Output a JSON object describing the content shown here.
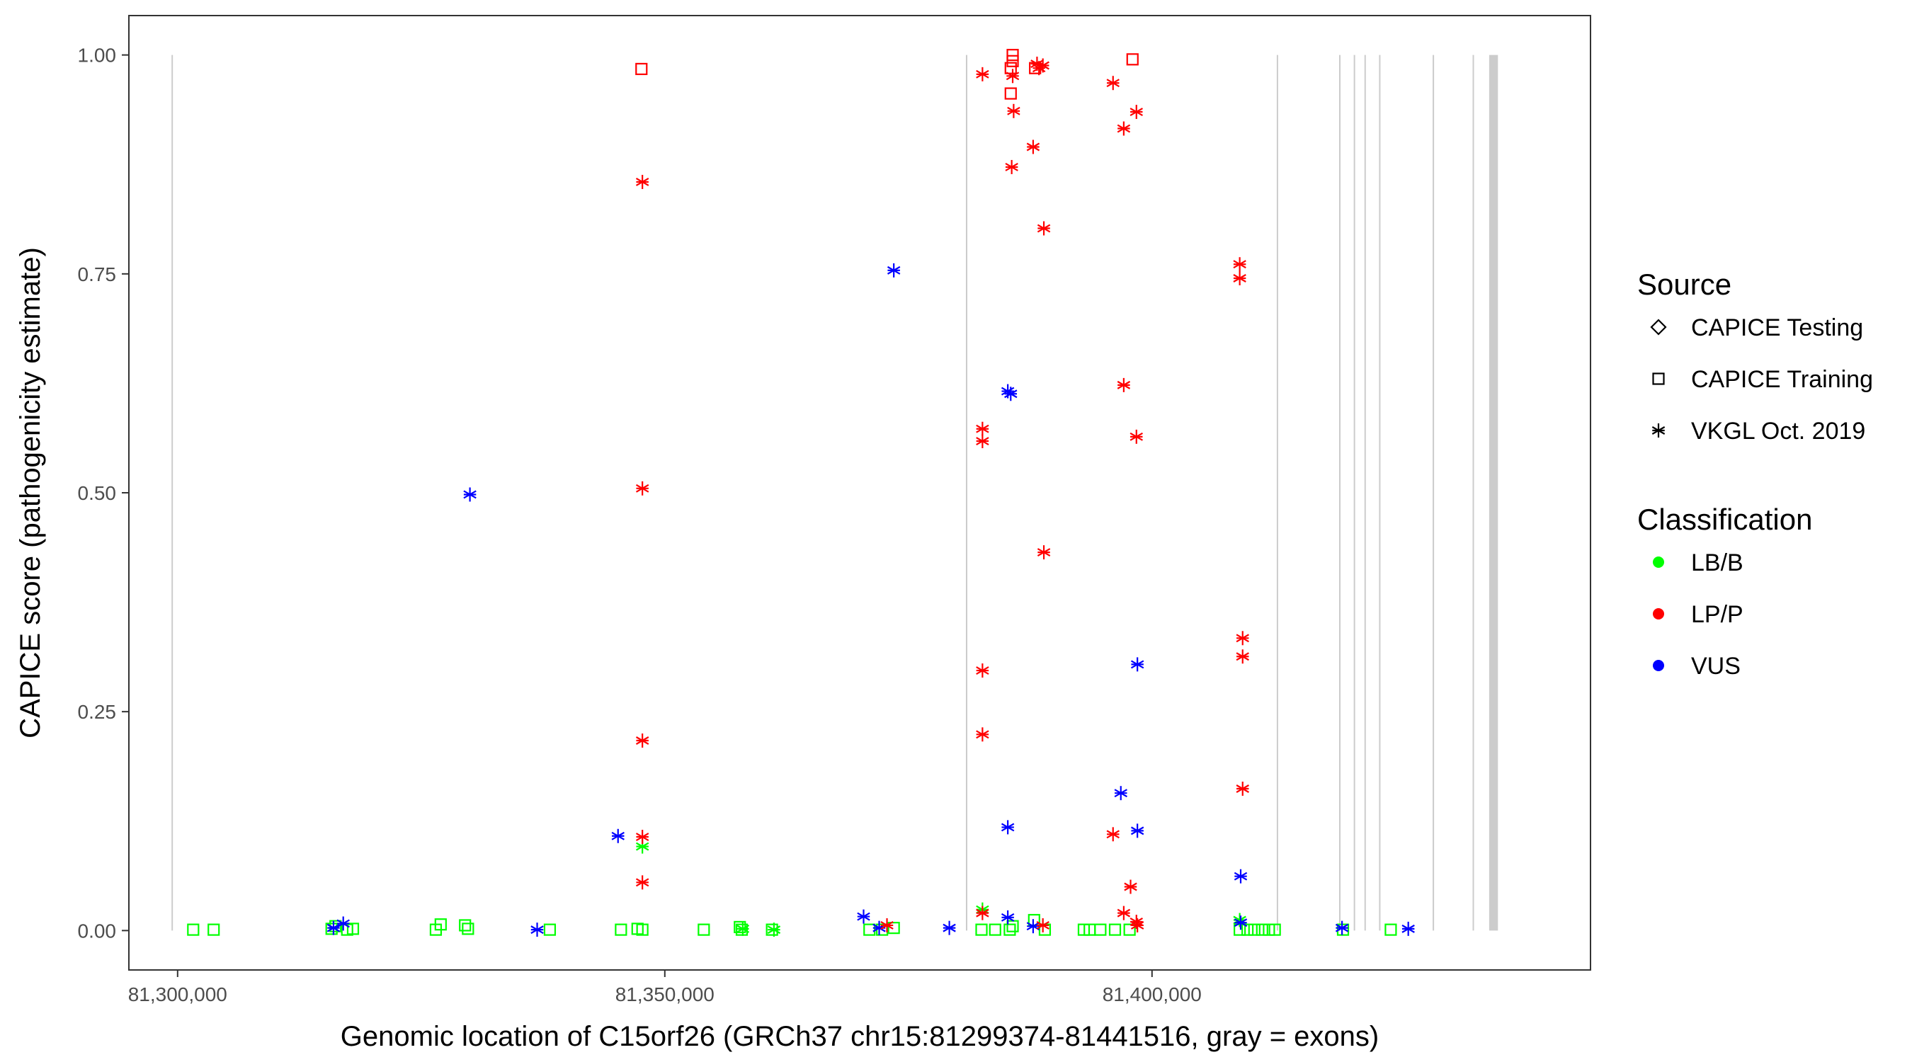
{
  "chart_data": {
    "type": "scatter",
    "xlabel": "Genomic location of C15orf26 (GRCh37 chr15:81299374-81441516, gray = exons)",
    "ylabel": "CAPICE score (pathogenicity estimate)",
    "xlim": [
      81295000,
      81445000
    ],
    "ylim": [
      -0.045,
      1.045
    ],
    "x_ticks": [
      81300000,
      81350000,
      81400000
    ],
    "x_tick_labels": [
      "81,300,000",
      "81,350,000",
      "81,400,000"
    ],
    "y_ticks": [
      0,
      0.25,
      0.5,
      0.75,
      1.0
    ],
    "y_tick_labels": [
      "0.00",
      "0.25",
      "0.50",
      "0.75",
      "1.00"
    ],
    "grid": false,
    "exons_color": "#cccccc",
    "exons": [
      [
        81299374,
        81299460
      ],
      [
        81380900,
        81380990
      ],
      [
        81412800,
        81412890
      ],
      [
        81419200,
        81419290
      ],
      [
        81420700,
        81420790
      ],
      [
        81421800,
        81421890
      ],
      [
        81423300,
        81423390
      ],
      [
        81428800,
        81428890
      ],
      [
        81432900,
        81432990
      ],
      [
        81434600,
        81435500
      ]
    ],
    "legend_placement": "right",
    "legends": [
      {
        "title": "Source",
        "entries": [
          {
            "label": "CAPICE Testing",
            "shape": "diamond"
          },
          {
            "label": "CAPICE Training",
            "shape": "square"
          },
          {
            "label": "VKGL Oct. 2019",
            "shape": "asterisk"
          }
        ]
      },
      {
        "title": "Classification",
        "entries": [
          {
            "label": "LB/B",
            "color": "#00ff00"
          },
          {
            "label": "LP/P",
            "color": "#ff0000"
          },
          {
            "label": "VUS",
            "color": "#0000ff"
          }
        ]
      }
    ],
    "series": [
      {
        "name": "VKGL Oct. 2019 - LP/P",
        "shape": "asterisk",
        "color": "#ff0000",
        "points": [
          [
            81347700,
            0.855
          ],
          [
            81347700,
            0.505
          ],
          [
            81347700,
            0.217
          ],
          [
            81347700,
            0.107
          ],
          [
            81347700,
            0.055
          ],
          [
            81372800,
            0.006
          ],
          [
            81382600,
            0.978
          ],
          [
            81382600,
            0.573
          ],
          [
            81382600,
            0.559
          ],
          [
            81382600,
            0.297
          ],
          [
            81382600,
            0.224
          ],
          [
            81382600,
            0.02
          ],
          [
            81385600,
            0.872
          ],
          [
            81385700,
            0.976
          ],
          [
            81385800,
            0.936
          ],
          [
            81387800,
            0.895
          ],
          [
            81388200,
            0.99
          ],
          [
            81388400,
            0.985
          ],
          [
            81388800,
            0.988
          ],
          [
            81388900,
            0.802
          ],
          [
            81388900,
            0.432
          ],
          [
            81388800,
            0.006
          ],
          [
            81396000,
            0.968
          ],
          [
            81396000,
            0.11
          ],
          [
            81397100,
            0.916
          ],
          [
            81397100,
            0.623
          ],
          [
            81397100,
            0.02
          ],
          [
            81397800,
            0.05
          ],
          [
            81398400,
            0.935
          ],
          [
            81398400,
            0.564
          ],
          [
            81398400,
            0.01
          ],
          [
            81398500,
            0.006
          ],
          [
            81409000,
            0.761
          ],
          [
            81409000,
            0.745
          ],
          [
            81409300,
            0.334
          ],
          [
            81409300,
            0.313
          ],
          [
            81409300,
            0.162
          ]
        ]
      },
      {
        "name": "VKGL Oct. 2019 - VUS",
        "shape": "asterisk",
        "color": "#0000ff",
        "points": [
          [
            81316000,
            0.003
          ],
          [
            81317000,
            0.008
          ],
          [
            81330000,
            0.498
          ],
          [
            81336900,
            0.001
          ],
          [
            81345200,
            0.108
          ],
          [
            81370400,
            0.016
          ],
          [
            81372000,
            0.003
          ],
          [
            81373500,
            0.754
          ],
          [
            81379200,
            0.003
          ],
          [
            81385200,
            0.616
          ],
          [
            81385500,
            0.613
          ],
          [
            81385200,
            0.118
          ],
          [
            81385200,
            0.015
          ],
          [
            81387800,
            0.005
          ],
          [
            81396800,
            0.157
          ],
          [
            81398500,
            0.304
          ],
          [
            81398500,
            0.114
          ],
          [
            81409100,
            0.062
          ],
          [
            81409100,
            0.009
          ],
          [
            81419500,
            0.003
          ],
          [
            81426300,
            0.002
          ]
        ]
      },
      {
        "name": "VKGL Oct. 2019 - LB/B",
        "shape": "asterisk",
        "color": "#00ff00",
        "points": [
          [
            81347700,
            0.096
          ],
          [
            81358000,
            0.002
          ],
          [
            81361200,
            0.001
          ],
          [
            81382600,
            0.024
          ],
          [
            81409000,
            0.012
          ]
        ]
      },
      {
        "name": "CAPICE Training - LP/P",
        "shape": "square",
        "color": "#ff0000",
        "points": [
          [
            81347600,
            0.984
          ],
          [
            81385500,
            0.956
          ],
          [
            81385500,
            0.985
          ],
          [
            81385700,
            0.993
          ],
          [
            81385700,
            1.0
          ],
          [
            81388000,
            0.985
          ],
          [
            81398000,
            0.995
          ]
        ]
      },
      {
        "name": "CAPICE Training - LB/B",
        "shape": "square",
        "color": "#00ff00",
        "points": [
          [
            81301600,
            0.001
          ],
          [
            81303700,
            0.001
          ],
          [
            81315800,
            0.002
          ],
          [
            81316200,
            0.005
          ],
          [
            81317400,
            0.001
          ],
          [
            81318000,
            0.002
          ],
          [
            81326500,
            0.001
          ],
          [
            81327000,
            0.007
          ],
          [
            81329500,
            0.006
          ],
          [
            81329800,
            0.002
          ],
          [
            81338200,
            0.001
          ],
          [
            81345500,
            0.001
          ],
          [
            81347200,
            0.002
          ],
          [
            81347700,
            0.001
          ],
          [
            81354000,
            0.001
          ],
          [
            81357700,
            0.004
          ],
          [
            81357900,
            0.001
          ],
          [
            81361000,
            0.001
          ],
          [
            81371000,
            0.001
          ],
          [
            81372300,
            0.001
          ],
          [
            81373500,
            0.003
          ],
          [
            81382500,
            0.001
          ],
          [
            81383900,
            0.001
          ],
          [
            81385400,
            0.001
          ],
          [
            81385700,
            0.005
          ],
          [
            81387900,
            0.012
          ],
          [
            81389000,
            0.001
          ],
          [
            81393000,
            0.001
          ],
          [
            81393600,
            0.001
          ],
          [
            81394700,
            0.001
          ],
          [
            81396200,
            0.001
          ],
          [
            81397700,
            0.001
          ],
          [
            81409000,
            0.001
          ],
          [
            81409800,
            0.001
          ],
          [
            81410500,
            0.001
          ],
          [
            81411300,
            0.001
          ],
          [
            81412000,
            0.001
          ],
          [
            81412600,
            0.001
          ],
          [
            81419600,
            0.001
          ],
          [
            81424500,
            0.001
          ]
        ]
      }
    ]
  }
}
